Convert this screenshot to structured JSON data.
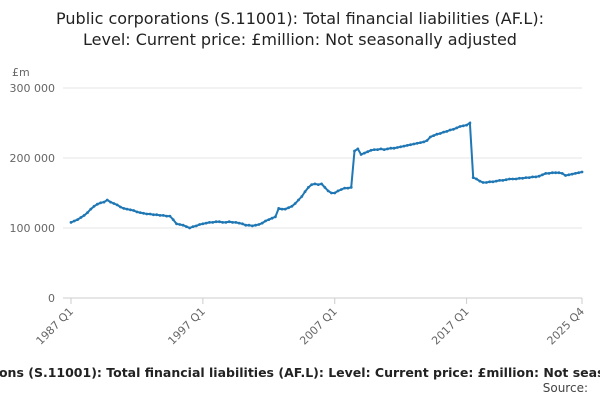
{
  "chart_data": {
    "type": "line",
    "title": "Public corporations (S.11001): Total financial liabilities (AF.L): Level: Current price: £million: Not seasonally adjusted",
    "y_label": "£m",
    "source": "Source:",
    "color": "#1f77b4",
    "grid": true,
    "ylim": [
      0,
      300000
    ],
    "yticks": [
      {
        "value": 0,
        "label": "0"
      },
      {
        "value": 100000,
        "label": "100 000"
      },
      {
        "value": 200000,
        "label": "200 000"
      },
      {
        "value": 300000,
        "label": "300 000"
      }
    ],
    "categories": [
      "1987 Q1",
      null,
      null,
      null,
      null,
      null,
      null,
      null,
      null,
      null,
      null,
      null,
      null,
      null,
      null,
      null,
      null,
      null,
      null,
      null,
      null,
      null,
      null,
      null,
      null,
      null,
      null,
      null,
      null,
      null,
      null,
      null,
      null,
      null,
      null,
      null,
      null,
      null,
      null,
      null,
      "1997 Q1",
      null,
      null,
      null,
      null,
      null,
      null,
      null,
      null,
      null,
      null,
      null,
      null,
      null,
      null,
      null,
      null,
      null,
      null,
      null,
      null,
      null,
      null,
      null,
      null,
      null,
      null,
      null,
      null,
      null,
      null,
      null,
      null,
      null,
      null,
      null,
      null,
      null,
      null,
      null,
      "2007 Q1",
      null,
      null,
      null,
      null,
      null,
      null,
      null,
      null,
      null,
      null,
      null,
      null,
      null,
      null,
      null,
      null,
      null,
      null,
      null,
      null,
      null,
      null,
      null,
      null,
      null,
      null,
      null,
      null,
      null,
      null,
      null,
      null,
      null,
      null,
      null,
      null,
      null,
      null,
      null,
      "2017 Q1",
      null,
      null,
      null,
      null,
      null,
      null,
      null,
      null,
      null,
      null,
      null,
      null,
      null,
      null,
      null,
      null,
      null,
      null,
      null,
      null,
      null,
      null,
      null,
      null,
      null,
      null,
      null,
      null,
      null,
      null,
      null,
      null,
      null,
      null,
      "2025 Q4"
    ],
    "values": [
      108000,
      110000,
      112000,
      115000,
      118000,
      122000,
      127000,
      131000,
      134000,
      136000,
      137000,
      140000,
      137000,
      135000,
      133000,
      130000,
      128000,
      127000,
      126000,
      125000,
      123000,
      122000,
      121000,
      120000,
      120000,
      119000,
      119000,
      118000,
      118000,
      117000,
      117000,
      112000,
      106000,
      105000,
      104000,
      102000,
      100000,
      102000,
      103000,
      105000,
      106000,
      107000,
      108000,
      108000,
      109000,
      109000,
      108000,
      108000,
      109000,
      108000,
      108000,
      107000,
      106000,
      104000,
      104000,
      103000,
      104000,
      105000,
      107000,
      110000,
      112000,
      114000,
      116000,
      128000,
      127000,
      127000,
      129000,
      131000,
      135000,
      140000,
      145000,
      152000,
      158000,
      162000,
      163000,
      162000,
      163000,
      158000,
      153000,
      150000,
      150000,
      153000,
      155000,
      157000,
      157000,
      158000,
      210000,
      213000,
      205000,
      207000,
      209000,
      211000,
      212000,
      212000,
      213000,
      212000,
      213000,
      214000,
      214000,
      215000,
      216000,
      217000,
      218000,
      219000,
      220000,
      221000,
      222000,
      223000,
      225000,
      230000,
      232000,
      234000,
      235000,
      237000,
      238000,
      240000,
      241000,
      243000,
      245000,
      246000,
      247000,
      250000,
      172000,
      170000,
      167000,
      165000,
      165000,
      166000,
      166000,
      167000,
      168000,
      168000,
      169000,
      170000,
      170000,
      170000,
      171000,
      171000,
      172000,
      172000,
      173000,
      173000,
      174000,
      176000,
      178000,
      178000,
      179000,
      179000,
      179000,
      178000,
      175000,
      176000,
      177000,
      178000,
      179000,
      180000
    ]
  }
}
